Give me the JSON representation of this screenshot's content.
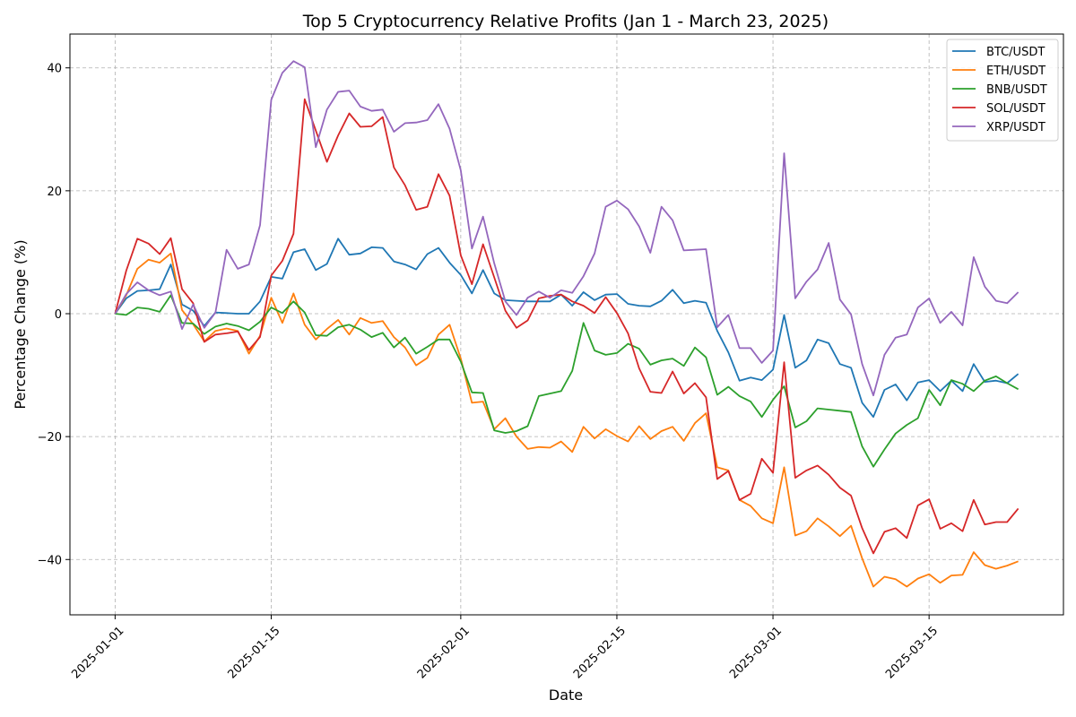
{
  "chart_data": {
    "type": "line",
    "title": "Top 5 Cryptocurrency Relative Profits (Jan 1 - March 23, 2025)",
    "xlabel": "Date",
    "ylabel": "Percentage Change (%)",
    "x_range": [
      "2025-01-01",
      "2025-03-23"
    ],
    "ylim": [
      -49,
      45.5
    ],
    "x_ticks": [
      "2025-01-01",
      "2025-01-15",
      "2025-02-01",
      "2025-02-15",
      "2025-03-01",
      "2025-03-15"
    ],
    "y_ticks": [
      -40,
      -20,
      0,
      20,
      40
    ],
    "grid": true,
    "legend_position": "top-right",
    "series": [
      {
        "name": "BTC/USDT",
        "color": "#1f77b4",
        "values": [
          0,
          2.5,
          3.7,
          3.8,
          4,
          8,
          1.5,
          0.5,
          -2,
          0.2,
          0.1,
          0,
          0,
          2,
          6,
          5.7,
          10,
          10.5,
          7.1,
          8.1,
          12.2,
          9.6,
          9.8,
          10.8,
          10.7,
          8.5,
          8,
          7.2,
          9.7,
          10.7,
          8.3,
          6.3,
          3.3,
          7.1,
          3.3,
          2.2,
          2.1,
          2,
          2,
          2,
          3.1,
          1.3,
          3.5,
          2.2,
          3.1,
          3.2,
          1.6,
          1.3,
          1.2,
          2.1,
          3.9,
          1.7,
          2.1,
          1.8,
          -2.8,
          -6.3,
          -10.9,
          -10.4,
          -10.8,
          -9.1,
          -0.2,
          -8.8,
          -7.6,
          -4.2,
          -4.8,
          -8.2,
          -8.8,
          -14.5,
          -16.8,
          -12.4,
          -11.5,
          -14.1,
          -11.2,
          -10.8,
          -12.6,
          -10.9,
          -12.6,
          -8.2,
          -11.1,
          -10.9,
          -11.3,
          -9.8
        ]
      },
      {
        "name": "ETH/USDT",
        "color": "#ff7f0e",
        "values": [
          0,
          3,
          7.3,
          8.8,
          8.3,
          9.8,
          0.6,
          -1.7,
          -4.5,
          -2.8,
          -2.4,
          -2.8,
          -6.5,
          -3.6,
          2.6,
          -1.5,
          3.3,
          -1.8,
          -4.2,
          -2.5,
          -1,
          -3.4,
          -0.7,
          -1.5,
          -1.2,
          -3.8,
          -5.5,
          -8.4,
          -7.2,
          -3.4,
          -1.8,
          -7.3,
          -14.5,
          -14.3,
          -18.8,
          -17,
          -20,
          -22,
          -21.7,
          -21.8,
          -20.8,
          -22.5,
          -18.4,
          -20.3,
          -18.8,
          -19.9,
          -20.8,
          -18.3,
          -20.4,
          -19.1,
          -18.4,
          -20.7,
          -17.8,
          -16.2,
          -25,
          -25.5,
          -30.3,
          -31.3,
          -33.3,
          -34.1,
          -25,
          -36.1,
          -35.4,
          -33.3,
          -34.6,
          -36.2,
          -34.5,
          -39.8,
          -44.4,
          -42.8,
          -43.2,
          -44.4,
          -43.1,
          -42.4,
          -43.8,
          -42.6,
          -42.5,
          -38.8,
          -40.9,
          -41.5,
          -41,
          -40.3
        ]
      },
      {
        "name": "BNB/USDT",
        "color": "#2ca02c",
        "values": [
          0,
          -0.2,
          1,
          0.8,
          0.3,
          3,
          -1.5,
          -1.6,
          -3.3,
          -2.1,
          -1.6,
          -2,
          -2.7,
          -1.3,
          1,
          0.1,
          2,
          0.2,
          -3.5,
          -3.6,
          -2.2,
          -1.8,
          -2.6,
          -3.8,
          -3.1,
          -5.5,
          -3.9,
          -6.5,
          -5.4,
          -4.2,
          -4.2,
          -7.8,
          -12.8,
          -12.9,
          -19,
          -19.4,
          -19.1,
          -18.3,
          -13.4,
          -13,
          -12.6,
          -9.3,
          -1.5,
          -6,
          -6.7,
          -6.4,
          -4.9,
          -5.7,
          -8.3,
          -7.6,
          -7.3,
          -8.5,
          -5.5,
          -7.1,
          -13.2,
          -11.9,
          -13.4,
          -14.3,
          -16.8,
          -14,
          -11.8,
          -18.5,
          -17.5,
          -15.4,
          -15.6,
          -15.8,
          -16,
          -21.6,
          -24.9,
          -22.1,
          -19.5,
          -18.1,
          -17,
          -12.4,
          -14.9,
          -10.8,
          -11.4,
          -12.6,
          -10.9,
          -10.2,
          -11.3,
          -12.3
        ]
      },
      {
        "name": "SOL/USDT",
        "color": "#d62728",
        "values": [
          0,
          7,
          12.2,
          11.4,
          9.7,
          12.3,
          4,
          1.7,
          -4.6,
          -3.4,
          -3.2,
          -2.9,
          -5.9,
          -3.8,
          6.2,
          8.6,
          13,
          34.9,
          29.8,
          24.7,
          29,
          32.6,
          30.4,
          30.5,
          32,
          23.8,
          20.9,
          16.9,
          17.4,
          22.7,
          19.2,
          9.5,
          4.8,
          11.3,
          5.9,
          0.5,
          -2.3,
          -1.1,
          2.5,
          2.9,
          3.1,
          2,
          1.3,
          0.1,
          2.7,
          0.1,
          -3.2,
          -8.9,
          -12.7,
          -12.9,
          -9.4,
          -13,
          -11.3,
          -13.6,
          -26.9,
          -25.6,
          -30.3,
          -29.3,
          -23.6,
          -25.9,
          -7.9,
          -26.7,
          -25.5,
          -24.7,
          -26.2,
          -28.3,
          -29.6,
          -34.9,
          -39,
          -35.5,
          -34.9,
          -36.5,
          -31.2,
          -30.2,
          -35,
          -34.1,
          -35.4,
          -30.3,
          -34.3,
          -33.9,
          -33.9,
          -31.7
        ]
      },
      {
        "name": "XRP/USDT",
        "color": "#9467bd",
        "values": [
          0,
          3.2,
          5.1,
          3.8,
          3,
          3.6,
          -2.5,
          1.5,
          -2.3,
          0.2,
          10.4,
          7.3,
          8,
          14.4,
          34.8,
          39.2,
          41.1,
          40.1,
          27.1,
          33.2,
          36.1,
          36.3,
          33.7,
          33,
          33.2,
          29.6,
          31,
          31.1,
          31.5,
          34.1,
          30.1,
          23.3,
          10.6,
          15.8,
          8.2,
          2,
          -0.2,
          2.6,
          3.6,
          2.6,
          3.8,
          3.4,
          6.1,
          9.8,
          17.4,
          18.4,
          17,
          14.2,
          9.9,
          17.4,
          15.2,
          10.3,
          10.4,
          10.5,
          -2.2,
          -0.2,
          -5.6,
          -5.6,
          -8,
          -6,
          26.1,
          2.5,
          5.2,
          7.2,
          11.5,
          2.3,
          -0.1,
          -8.2,
          -13.3,
          -6.7,
          -3.9,
          -3.4,
          1,
          2.5,
          -1.5,
          0.3,
          -1.9,
          9.2,
          4.4,
          2.1,
          1.7,
          3.5
        ]
      }
    ]
  }
}
